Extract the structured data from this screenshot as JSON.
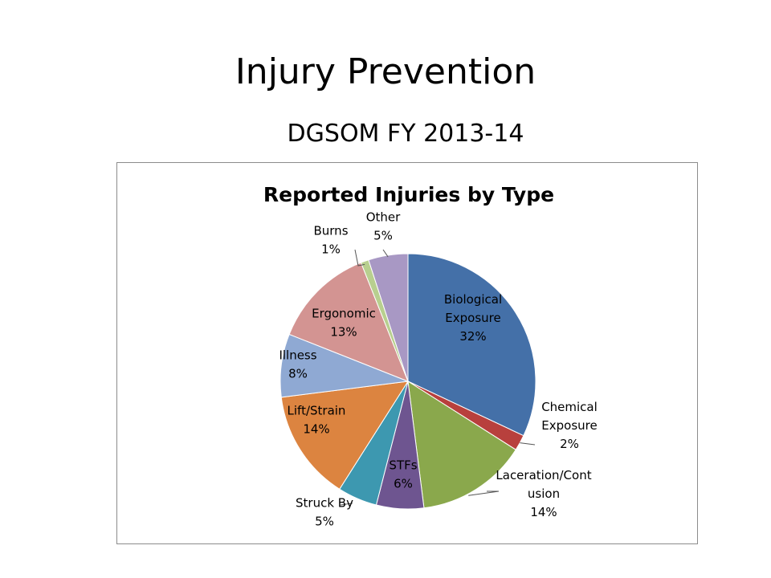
{
  "slide": {
    "title": "Injury Prevention",
    "subtitle": "DGSOM FY 2013-14"
  },
  "chart_data": {
    "type": "pie",
    "title": "Reported Injuries by Type",
    "categories": [
      "Biological Exposure",
      "Chemical Exposure",
      "Laceration/Contusion",
      "STFs",
      "Struck By",
      "Lift/Strain",
      "Illness",
      "Ergonomic",
      "Burns",
      "Other"
    ],
    "values": [
      32,
      2,
      14,
      6,
      5,
      14,
      8,
      13,
      1,
      5
    ],
    "value_labels": [
      "32%",
      "2%",
      "14%",
      "6%",
      "5%",
      "14%",
      "8%",
      "13%",
      "1%",
      "5%"
    ],
    "label_lines": [
      [
        "Biological",
        "Exposure",
        "32%"
      ],
      [
        "Chemical",
        "Exposure",
        "2%"
      ],
      [
        "Laceration/Cont",
        "usion",
        "14%"
      ],
      [
        "STFs",
        "6%"
      ],
      [
        "Struck By",
        "5%"
      ],
      [
        "Lift/Strain",
        "14%"
      ],
      [
        "Illness",
        "8%"
      ],
      [
        "Ergonomic",
        "13%"
      ],
      [
        "Burns",
        "1%"
      ],
      [
        "Other",
        "5%"
      ]
    ],
    "colors": [
      "#4470a8",
      "#b8403d",
      "#8aa84c",
      "#6e5590",
      "#3d98b0",
      "#dc8440",
      "#8fa9d3",
      "#d39492",
      "#b8cf8f",
      "#a898c4"
    ],
    "legend": "none"
  }
}
